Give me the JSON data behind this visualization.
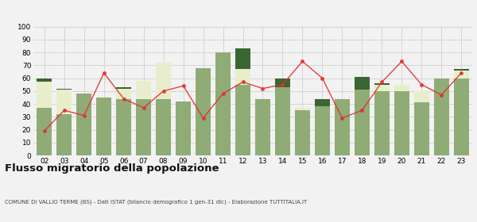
{
  "years": [
    "02",
    "03",
    "04",
    "05",
    "06",
    "07",
    "08",
    "09",
    "10",
    "11",
    "12",
    "13",
    "14",
    "15",
    "16",
    "17",
    "18",
    "19",
    "20",
    "21",
    "22",
    "23"
  ],
  "iscritti_comuni": [
    37,
    32,
    48,
    45,
    44,
    44,
    44,
    42,
    68,
    80,
    55,
    44,
    53,
    35,
    38,
    44,
    51,
    50,
    50,
    41,
    60,
    60
  ],
  "iscritti_estero": [
    20,
    19,
    0,
    0,
    8,
    14,
    28,
    0,
    0,
    0,
    12,
    0,
    0,
    2,
    0,
    0,
    0,
    5,
    5,
    9,
    0,
    6
  ],
  "iscritti_altri": [
    3,
    1,
    0,
    0,
    1,
    0,
    0,
    0,
    0,
    0,
    16,
    0,
    7,
    0,
    6,
    0,
    10,
    1,
    0,
    0,
    0,
    1
  ],
  "cancellati": [
    19,
    35,
    31,
    64,
    44,
    37,
    50,
    54,
    29,
    48,
    57,
    52,
    55,
    73,
    60,
    29,
    35,
    57,
    73,
    55,
    47,
    64
  ],
  "color_comuni": "#8fac76",
  "color_estero": "#e8eecc",
  "color_altri": "#3a6632",
  "color_cancellati": "#e03030",
  "title": "Flusso migratorio della popolazione",
  "subtitle": "COMUNE DI VALLIO TERME (BS) - Dati ISTAT (bilancio demografico 1 gen-31 dic) - Elaborazione TUTTITALIA.IT",
  "ylim": [
    0,
    100
  ],
  "yticks": [
    0,
    10,
    20,
    30,
    40,
    50,
    60,
    70,
    80,
    90,
    100
  ],
  "bg_color": "#f2f2f2",
  "grid_color": "#d0d0d0"
}
